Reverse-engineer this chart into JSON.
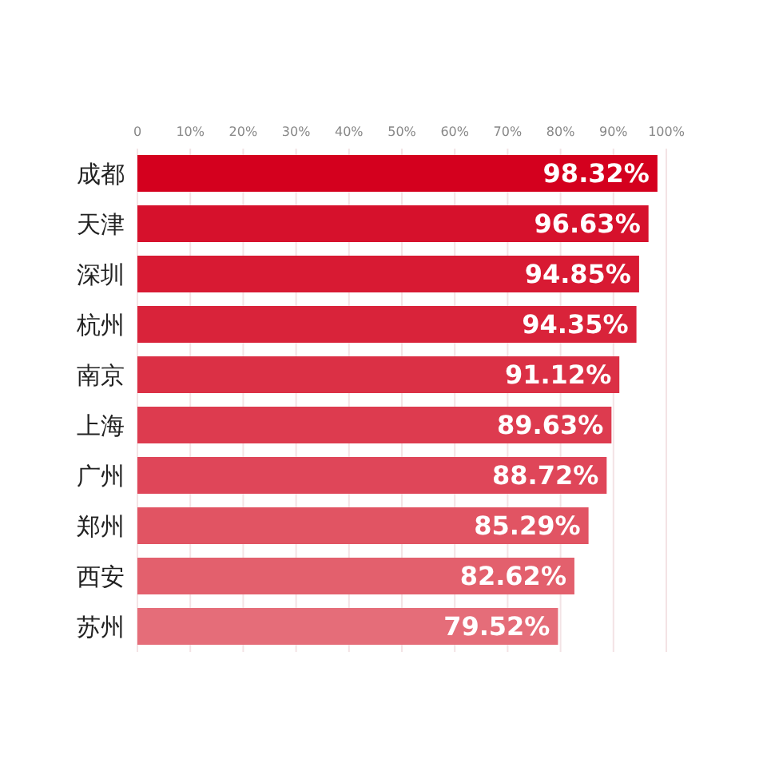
{
  "chart_data": {
    "type": "bar",
    "orientation": "horizontal",
    "categories": [
      "成都",
      "天津",
      "深圳",
      "杭州",
      "南京",
      "上海",
      "广州",
      "郑州",
      "西安",
      "苏州"
    ],
    "values": [
      98.32,
      96.63,
      94.85,
      94.35,
      91.12,
      89.63,
      88.72,
      85.29,
      82.62,
      79.52
    ],
    "value_labels": [
      "98.32%",
      "96.63%",
      "94.85%",
      "94.35%",
      "91.12%",
      "89.63%",
      "88.72%",
      "85.29%",
      "82.62%",
      "79.52%"
    ],
    "colors": [
      "#d4001e",
      "#d6112c",
      "#d81a33",
      "#d9233a",
      "#db3045",
      "#dd3b4f",
      "#df4659",
      "#e15463",
      "#e3606d",
      "#e56d79"
    ],
    "xlim": [
      0,
      100
    ],
    "xticks": [
      0,
      {
        "value": 10,
        "label": "10%"
      },
      {
        "value": 20,
        "label": "20%"
      },
      {
        "value": 30,
        "label": "30%"
      },
      {
        "value": 40,
        "label": "40%"
      },
      {
        "value": 50,
        "label": "50%"
      },
      {
        "value": 60,
        "label": "60%"
      },
      {
        "value": 70,
        "label": "70%"
      },
      {
        "value": 80,
        "label": "80%"
      },
      {
        "value": 90,
        "label": "90%"
      },
      {
        "value": 100,
        "label": "100%"
      }
    ],
    "grid": "x"
  }
}
